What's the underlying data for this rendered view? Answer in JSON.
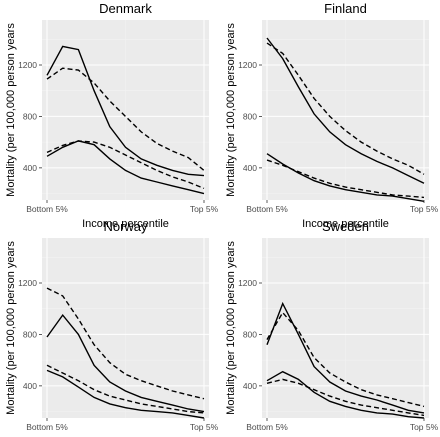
{
  "chart_data": [
    {
      "type": "line",
      "title": "Denmark",
      "xlabel": "Income percentile",
      "ylabel": "Mortality (per 100,000 person years",
      "x_tick_labels": [
        "Bottom 5%",
        "Top 5%"
      ],
      "ylim": [
        150,
        1550
      ],
      "y_ticks": [
        400,
        800,
        1200
      ],
      "x": [
        0,
        2,
        4,
        6,
        8,
        10,
        12,
        14,
        16,
        18,
        20
      ],
      "series": [
        {
          "style": "solid",
          "values": [
            1120,
            1345,
            1320,
            1000,
            720,
            560,
            470,
            420,
            380,
            350,
            340
          ]
        },
        {
          "style": "dashed",
          "values": [
            1090,
            1175,
            1160,
            1060,
            920,
            800,
            680,
            590,
            530,
            480,
            380
          ]
        },
        {
          "style": "solid",
          "values": [
            490,
            560,
            610,
            580,
            470,
            380,
            320,
            290,
            260,
            230,
            200
          ]
        },
        {
          "style": "dashed",
          "values": [
            520,
            575,
            610,
            600,
            560,
            500,
            440,
            380,
            330,
            290,
            240
          ]
        }
      ]
    },
    {
      "type": "line",
      "title": "Finland",
      "xlabel": "Income percentile",
      "ylabel": "Mortality (per 100,000 person years",
      "x_tick_labels": [
        "Bottom 5%",
        "Top 5%"
      ],
      "ylim": [
        150,
        1550
      ],
      "y_ticks": [
        400,
        800,
        1200
      ],
      "x": [
        0,
        2,
        4,
        6,
        8,
        10,
        12,
        14,
        16,
        18,
        20
      ],
      "series": [
        {
          "style": "solid",
          "values": [
            1410,
            1250,
            1030,
            820,
            680,
            580,
            510,
            450,
            400,
            340,
            280
          ]
        },
        {
          "style": "dashed",
          "values": [
            1370,
            1290,
            1120,
            940,
            800,
            690,
            600,
            530,
            470,
            420,
            350
          ]
        },
        {
          "style": "solid",
          "values": [
            510,
            430,
            360,
            300,
            260,
            230,
            210,
            190,
            180,
            160,
            140
          ]
        },
        {
          "style": "dashed",
          "values": [
            460,
            420,
            370,
            320,
            280,
            250,
            230,
            210,
            190,
            180,
            170
          ]
        }
      ]
    },
    {
      "type": "line",
      "title": "Norway",
      "xlabel": "Income percentile",
      "ylabel": "Mortality (per 100,000 person years",
      "x_tick_labels": [
        "Bottom 5%",
        "Top 5%"
      ],
      "ylim": [
        150,
        1550
      ],
      "y_ticks": [
        400,
        800,
        1200
      ],
      "x": [
        0,
        2,
        4,
        6,
        8,
        10,
        12,
        14,
        16,
        18,
        20
      ],
      "series": [
        {
          "style": "solid",
          "values": [
            780,
            950,
            800,
            560,
            430,
            360,
            310,
            280,
            250,
            220,
            200
          ]
        },
        {
          "style": "dashed",
          "values": [
            1160,
            1100,
            920,
            720,
            580,
            490,
            440,
            400,
            360,
            330,
            300
          ]
        },
        {
          "style": "solid",
          "values": [
            520,
            470,
            390,
            310,
            260,
            230,
            210,
            200,
            190,
            170,
            150
          ]
        },
        {
          "style": "dashed",
          "values": [
            560,
            500,
            440,
            370,
            320,
            290,
            260,
            240,
            220,
            200,
            190
          ]
        }
      ]
    },
    {
      "type": "line",
      "title": "Sweden",
      "xlabel": "Income percentile",
      "ylabel": "Mortality (per 100,000 person years",
      "x_tick_labels": [
        "Bottom 5%",
        "Top 5%"
      ],
      "ylim": [
        150,
        1550
      ],
      "y_ticks": [
        400,
        800,
        1200
      ],
      "x": [
        0,
        2,
        4,
        6,
        8,
        10,
        12,
        14,
        16,
        18,
        20
      ],
      "series": [
        {
          "style": "solid",
          "values": [
            720,
            1040,
            800,
            550,
            430,
            360,
            320,
            290,
            250,
            210,
            190
          ]
        },
        {
          "style": "dashed",
          "values": [
            760,
            970,
            830,
            620,
            500,
            430,
            370,
            330,
            300,
            270,
            240
          ]
        },
        {
          "style": "solid",
          "values": [
            440,
            510,
            450,
            350,
            280,
            240,
            210,
            190,
            180,
            160,
            150
          ]
        },
        {
          "style": "dashed",
          "values": [
            420,
            450,
            420,
            370,
            320,
            280,
            250,
            230,
            210,
            190,
            170
          ]
        }
      ]
    }
  ]
}
